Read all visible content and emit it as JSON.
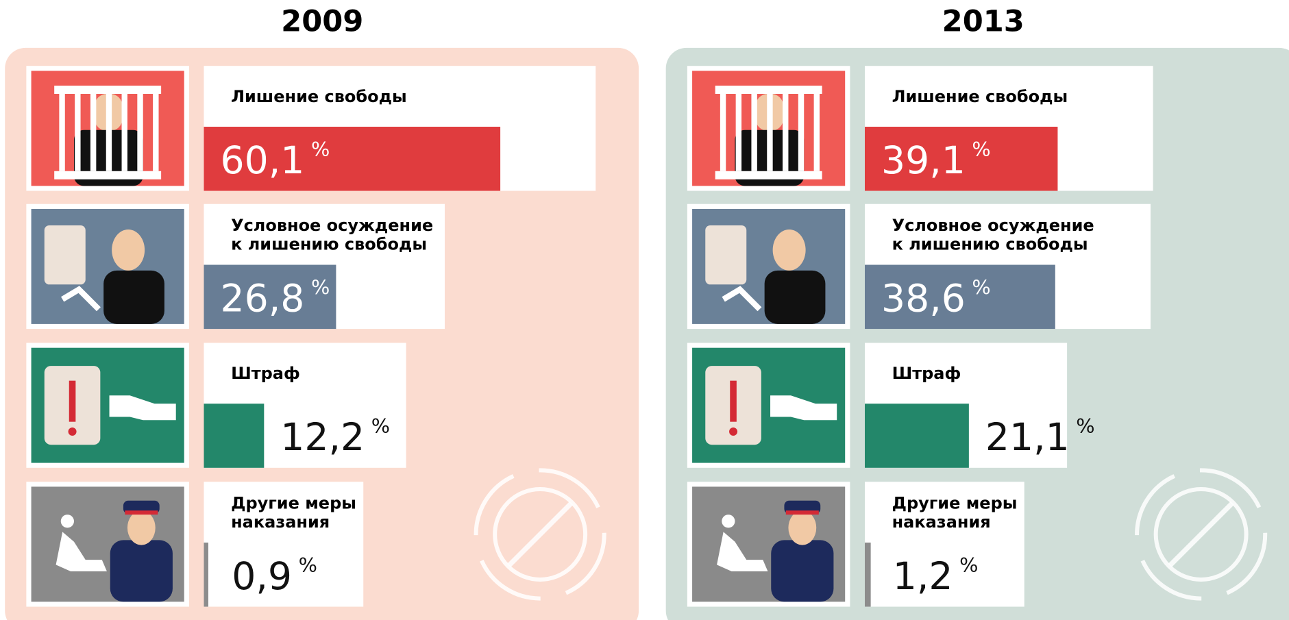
{
  "chart_data": [
    {
      "type": "bar",
      "title": "2009",
      "unit": "%",
      "categories": [
        "Лишение свободы",
        "Условное  осуждение\nк лишению свободы",
        "Штраф",
        "Другие меры\nнаказания"
      ],
      "values": [
        60.1,
        26.8,
        12.2,
        0.9
      ],
      "value_labels": [
        "60,1",
        "26,8",
        "12,2",
        "0,9"
      ],
      "colors": [
        "#e03c3e",
        "#687d95",
        "#23876a",
        "#8c8c8c"
      ],
      "background": "#fbdcd0"
    },
    {
      "type": "bar",
      "title": "2013",
      "unit": "%",
      "categories": [
        "Лишение свободы",
        "Условное  осуждение\nк лишению свободы",
        "Штраф",
        "Другие меры\nнаказания"
      ],
      "values": [
        39.1,
        38.6,
        21.1,
        1.2
      ],
      "value_labels": [
        "39,1",
        "38,6",
        "21,1",
        "1,2"
      ],
      "colors": [
        "#e03c3e",
        "#687d95",
        "#23876a",
        "#8c8c8c"
      ],
      "background": "#d0ded8"
    }
  ]
}
